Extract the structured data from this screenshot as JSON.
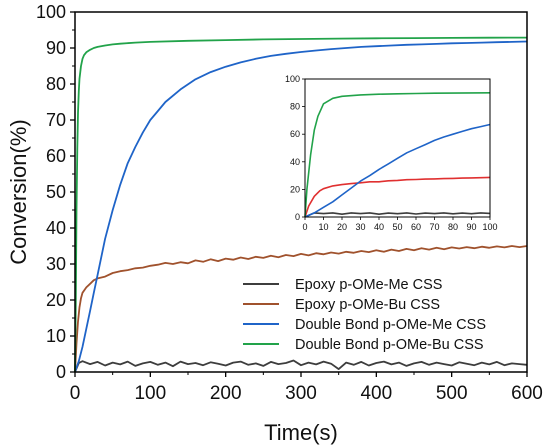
{
  "chart_data": [
    {
      "type": "line",
      "xlabel": "Time(s)",
      "ylabel": "Conversion(%)",
      "xlim": [
        0,
        600
      ],
      "ylim": [
        0,
        100
      ],
      "x_ticks": [
        0,
        100,
        200,
        300,
        400,
        500,
        600
      ],
      "y_ticks": [
        0,
        10,
        20,
        30,
        40,
        50,
        60,
        70,
        80,
        90,
        100
      ],
      "legend_position": "bottom-right",
      "grid": false,
      "series": [
        {
          "name": "Epoxy  p-OMe-Me CSS",
          "color": "#3d3d3d",
          "x": [
            0,
            5,
            10,
            20,
            30,
            40,
            50,
            60,
            70,
            80,
            90,
            100,
            110,
            120,
            130,
            140,
            150,
            160,
            170,
            180,
            190,
            200,
            210,
            220,
            230,
            240,
            250,
            260,
            270,
            280,
            290,
            300,
            310,
            320,
            330,
            340,
            350,
            360,
            370,
            380,
            390,
            400,
            410,
            420,
            430,
            440,
            450,
            460,
            470,
            480,
            490,
            500,
            510,
            520,
            530,
            540,
            550,
            560,
            570,
            580,
            590,
            600
          ],
          "y": [
            0,
            2.5,
            3.0,
            2.2,
            2.8,
            1.8,
            2.6,
            2.1,
            2.9,
            1.7,
            2.4,
            2.8,
            2.0,
            2.6,
            1.6,
            2.9,
            2.2,
            2.5,
            1.9,
            2.7,
            2.3,
            1.8,
            2.6,
            2.9,
            2.0,
            2.4,
            1.7,
            2.8,
            2.2,
            2.5,
            3.2,
            1.9,
            2.6,
            2.1,
            2.9,
            2.3,
            0.8,
            2.6,
            2.0,
            2.8,
            1.8,
            2.5,
            2.9,
            2.1,
            2.6,
            1.7,
            2.4,
            2.8,
            2.0,
            2.6,
            2.2,
            1.8,
            2.7,
            2.3,
            1.9,
            2.6,
            2.1,
            2.8,
            1.9,
            2.4,
            2.2,
            2.0
          ]
        },
        {
          "name": "Epoxy  p-OMe-Bu CSS",
          "color": "#a0522d",
          "x": [
            0,
            2,
            4,
            6,
            8,
            10,
            15,
            20,
            25,
            30,
            40,
            50,
            60,
            70,
            80,
            90,
            100,
            110,
            120,
            130,
            140,
            150,
            160,
            170,
            180,
            190,
            200,
            210,
            220,
            230,
            240,
            250,
            260,
            270,
            280,
            290,
            300,
            310,
            320,
            330,
            340,
            350,
            360,
            370,
            380,
            390,
            400,
            410,
            420,
            430,
            440,
            450,
            460,
            470,
            480,
            490,
            500,
            510,
            520,
            530,
            540,
            550,
            560,
            570,
            580,
            590,
            600
          ],
          "y": [
            0,
            8,
            14,
            18,
            20.5,
            22,
            23.5,
            24.5,
            25.5,
            26,
            26.5,
            27.5,
            28,
            28.3,
            28.8,
            29,
            29.5,
            29.8,
            30.3,
            30.0,
            30.5,
            30.2,
            31.0,
            30.6,
            31.3,
            30.8,
            31.5,
            31.2,
            31.8,
            31.4,
            32.0,
            31.7,
            32.3,
            31.9,
            32.5,
            32.2,
            32.8,
            32.4,
            33.0,
            32.7,
            33.2,
            32.9,
            33.4,
            33.1,
            33.6,
            33.3,
            33.8,
            33.4,
            34.0,
            33.6,
            34.2,
            33.8,
            34.4,
            34.0,
            34.5,
            34.1,
            34.6,
            34.3,
            34.7,
            34.4,
            34.8,
            34.5,
            34.9,
            34.6,
            35.0,
            34.7,
            35.0
          ]
        },
        {
          "name": "Double Bond p-OMe-Me CSS",
          "color": "#1f64c8",
          "x": [
            0,
            5,
            10,
            15,
            20,
            25,
            30,
            40,
            50,
            60,
            70,
            80,
            90,
            100,
            110,
            120,
            140,
            160,
            180,
            200,
            220,
            240,
            260,
            280,
            300,
            320,
            340,
            360,
            380,
            400,
            420,
            440,
            460,
            480,
            500,
            520,
            540,
            560,
            580,
            600
          ],
          "y": [
            0,
            3,
            7,
            12,
            17,
            22,
            27,
            37,
            45,
            52,
            58,
            62.5,
            66.5,
            70,
            72.5,
            75,
            78.5,
            81.3,
            83.3,
            84.8,
            86.0,
            87.0,
            87.8,
            88.4,
            88.9,
            89.3,
            89.7,
            90.0,
            90.3,
            90.5,
            90.7,
            90.9,
            91.0,
            91.15,
            91.3,
            91.4,
            91.5,
            91.6,
            91.7,
            91.8
          ]
        },
        {
          "name": "Double Bond p-OMe-Bu CSS",
          "color": "#22a34a",
          "x": [
            0,
            1,
            2,
            3,
            4,
            5,
            6,
            8,
            10,
            12,
            15,
            20,
            25,
            30,
            40,
            50,
            60,
            80,
            100,
            150,
            200,
            250,
            300,
            350,
            400,
            450,
            500,
            550,
            600
          ],
          "y": [
            0,
            20,
            45,
            62,
            72,
            78,
            81.5,
            85,
            87,
            88,
            88.8,
            89.5,
            90,
            90.3,
            90.7,
            91.0,
            91.2,
            91.5,
            91.7,
            92.0,
            92.2,
            92.4,
            92.5,
            92.6,
            92.7,
            92.75,
            92.8,
            92.85,
            92.9
          ]
        }
      ]
    },
    {
      "type": "line",
      "xlim": [
        0,
        100
      ],
      "ylim": [
        0,
        100
      ],
      "x_ticks": [
        0,
        10,
        20,
        30,
        40,
        50,
        60,
        70,
        80,
        90,
        100
      ],
      "y_ticks": [
        0,
        20,
        40,
        60,
        80,
        100
      ],
      "grid": false,
      "series": [
        {
          "color": "#3d3d3d",
          "x": [
            0,
            5,
            10,
            15,
            20,
            25,
            30,
            35,
            40,
            45,
            50,
            55,
            60,
            65,
            70,
            75,
            80,
            85,
            90,
            95,
            100
          ],
          "y": [
            0,
            3,
            2.5,
            3,
            2,
            3,
            2.5,
            3,
            2,
            2.8,
            2.4,
            3,
            2.2,
            2.8,
            2.5,
            3,
            2.3,
            2.8,
            2.4,
            3,
            2.6
          ]
        },
        {
          "color": "#e03030",
          "x": [
            0,
            2,
            5,
            8,
            10,
            15,
            20,
            25,
            30,
            35,
            40,
            45,
            50,
            55,
            60,
            65,
            70,
            75,
            80,
            85,
            90,
            95,
            100
          ],
          "y": [
            0,
            8,
            15,
            19,
            20.5,
            22.5,
            23.5,
            24.2,
            24.8,
            25.5,
            25.5,
            26.2,
            26.5,
            27.0,
            27.2,
            27.5,
            27.6,
            27.8,
            28.0,
            28.2,
            28.3,
            28.5,
            28.7
          ]
        },
        {
          "color": "#1f64c8",
          "x": [
            0,
            5,
            10,
            15,
            20,
            25,
            30,
            35,
            40,
            45,
            50,
            55,
            60,
            65,
            70,
            75,
            80,
            85,
            90,
            95,
            100
          ],
          "y": [
            0,
            3,
            7,
            11,
            16,
            21,
            26,
            30,
            34.5,
            38.5,
            42.5,
            46.5,
            49.5,
            52.5,
            55.5,
            58,
            60,
            62,
            64,
            65.5,
            67
          ]
        },
        {
          "color": "#22a34a",
          "x": [
            0,
            1,
            3,
            5,
            7,
            10,
            15,
            20,
            30,
            40,
            50,
            60,
            70,
            80,
            90,
            100
          ],
          "y": [
            0,
            20,
            45,
            63,
            73,
            82,
            86,
            87.5,
            88.5,
            89,
            89.3,
            89.5,
            89.7,
            89.8,
            89.9,
            90
          ]
        }
      ]
    }
  ]
}
